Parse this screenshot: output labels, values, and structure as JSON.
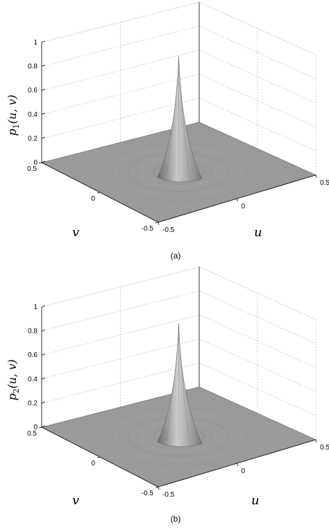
{
  "chart_data": [
    {
      "type": "surface",
      "panel_caption": "(a)",
      "zlabel_base": "p",
      "zlabel_sub": "1",
      "zlabel_args": "(u, v)",
      "xlabel": "u",
      "ylabel": "v",
      "zlim": [
        0,
        1
      ],
      "xlim": [
        -0.5,
        0.5
      ],
      "ylim": [
        -0.5,
        0.5
      ],
      "z_ticks": [
        "0",
        "0.2",
        "0.4",
        "0.6",
        "0.8",
        "1"
      ],
      "u_ticks": [
        "-0.5",
        "0",
        "0.5"
      ],
      "v_ticks": [
        "-0.5",
        "0",
        "0.5"
      ],
      "peak": {
        "u": 0,
        "v": 0,
        "p": 0.95
      },
      "grid": true
    },
    {
      "type": "surface",
      "panel_caption": "(b)",
      "zlabel_base": "p",
      "zlabel_sub": "2",
      "zlabel_args": "(u, v)",
      "xlabel": "u",
      "ylabel": "v",
      "zlim": [
        0,
        1
      ],
      "xlim": [
        -0.5,
        0.5
      ],
      "ylim": [
        -0.5,
        0.5
      ],
      "z_ticks": [
        "0",
        "0.2",
        "0.4",
        "0.6",
        "0.8",
        "1"
      ],
      "u_ticks": [
        "-0.5",
        "0",
        "0.5"
      ],
      "v_ticks": [
        "-0.5",
        "0",
        "0.5"
      ],
      "peak": {
        "u": 0,
        "v": 0,
        "p": 0.93
      },
      "grid": true
    }
  ],
  "colors": {
    "surface_light": "#c8c8c8",
    "surface_mid": "#9a9a9a",
    "surface_dark": "#5e5e5e",
    "grid": "#9a9a9a",
    "axis": "#000000"
  }
}
